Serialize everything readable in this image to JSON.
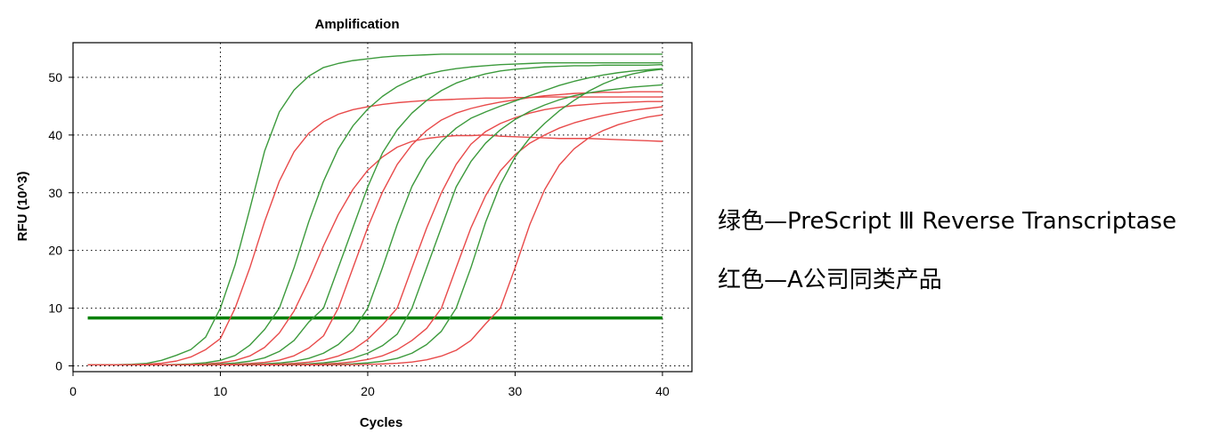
{
  "chart_data": {
    "type": "line",
    "title": "Amplification",
    "xlabel": "Cycles",
    "ylabel": "RFU (10^3)",
    "xlim": [
      0,
      42
    ],
    "ylim": [
      -1,
      56
    ],
    "x_ticks": [
      0,
      10,
      20,
      30,
      40
    ],
    "y_ticks": [
      0,
      10,
      20,
      30,
      40,
      50
    ],
    "grid": true,
    "x": [
      1,
      2,
      3,
      4,
      5,
      6,
      7,
      8,
      9,
      10,
      11,
      12,
      13,
      14,
      15,
      16,
      17,
      18,
      19,
      20,
      21,
      22,
      23,
      24,
      25,
      26,
      27,
      28,
      29,
      30,
      31,
      32,
      33,
      34,
      35,
      36,
      37,
      38,
      39,
      40
    ],
    "threshold": {
      "value": 8.3,
      "color": "#008000"
    },
    "series": [
      {
        "color": "#3c9a3c",
        "values": [
          0.18,
          0.19,
          0.21,
          0.27,
          0.44,
          0.96,
          1.82,
          2.83,
          4.98,
          10.0,
          17.5,
          27.2,
          37.2,
          44.0,
          47.8,
          50.2,
          51.7,
          52.4,
          52.9,
          53.2,
          53.5,
          53.7,
          53.8,
          53.9,
          54.0,
          54.0,
          54.0,
          54.0,
          54.0,
          54.0,
          54.0,
          54.0,
          54.0,
          54.0,
          54.0,
          54.0,
          54.0,
          54.0,
          54.0,
          54.0
        ]
      },
      {
        "color": "#e84a4a",
        "values": [
          0.18,
          0.18,
          0.2,
          0.23,
          0.3,
          0.46,
          0.83,
          1.55,
          2.82,
          4.73,
          10.0,
          17.0,
          25.0,
          32.0,
          37.1,
          40.3,
          42.3,
          43.6,
          44.4,
          44.9,
          45.3,
          45.6,
          45.8,
          46.0,
          46.1,
          46.2,
          46.3,
          46.4,
          46.4,
          46.5,
          46.5,
          46.6,
          46.6,
          46.6,
          46.6,
          46.6,
          46.6,
          46.6,
          46.6,
          46.6
        ]
      },
      {
        "color": "#3c9a3c",
        "values": [
          0.18,
          0.18,
          0.18,
          0.18,
          0.19,
          0.2,
          0.24,
          0.33,
          0.54,
          0.96,
          1.8,
          3.6,
          6.3,
          10.0,
          17.0,
          25.0,
          32.0,
          37.6,
          41.6,
          44.5,
          46.7,
          48.4,
          49.6,
          50.5,
          51.1,
          51.5,
          51.8,
          52.0,
          52.2,
          52.3,
          52.4,
          52.5,
          52.5,
          52.5,
          52.5,
          52.5,
          52.5,
          52.5,
          52.5,
          52.5
        ]
      },
      {
        "color": "#e84a4a",
        "values": [
          0.18,
          0.18,
          0.18,
          0.18,
          0.18,
          0.19,
          0.21,
          0.25,
          0.34,
          0.53,
          0.93,
          1.72,
          3.2,
          5.7,
          9.5,
          14.8,
          20.8,
          26.2,
          30.6,
          33.9,
          36.2,
          37.9,
          38.9,
          39.4,
          39.7,
          39.9,
          39.9,
          40.0,
          39.8,
          39.7,
          39.6,
          39.5,
          39.4,
          39.4,
          39.4,
          39.3,
          39.2,
          39.1,
          39.0,
          38.9
        ]
      },
      {
        "color": "#3c9a3c",
        "values": [
          0.18,
          0.18,
          0.18,
          0.18,
          0.18,
          0.18,
          0.19,
          0.21,
          0.25,
          0.33,
          0.49,
          0.81,
          1.4,
          2.5,
          4.4,
          7.6,
          10.0,
          17.0,
          24.0,
          31.0,
          36.9,
          40.9,
          43.8,
          46.0,
          47.7,
          49.0,
          49.9,
          50.6,
          51.1,
          51.4,
          51.6,
          51.8,
          51.9,
          52.0,
          52.0,
          52.1,
          52.1,
          52.1,
          52.1,
          52.2
        ]
      },
      {
        "color": "#e84a4a",
        "values": [
          0.18,
          0.18,
          0.18,
          0.18,
          0.18,
          0.18,
          0.18,
          0.19,
          0.21,
          0.24,
          0.3,
          0.41,
          0.61,
          1.0,
          1.75,
          3.1,
          5.2,
          10.0,
          17.0,
          24.0,
          30.1,
          34.9,
          38.3,
          40.8,
          42.6,
          43.8,
          44.6,
          45.2,
          45.7,
          46.1,
          46.5,
          46.8,
          47.0,
          47.2,
          47.3,
          47.4,
          47.4,
          47.5,
          47.5,
          47.5
        ]
      },
      {
        "color": "#3c9a3c",
        "values": [
          0.18,
          0.18,
          0.18,
          0.18,
          0.18,
          0.18,
          0.18,
          0.18,
          0.19,
          0.2,
          0.22,
          0.27,
          0.35,
          0.5,
          0.78,
          1.3,
          2.2,
          3.7,
          6.1,
          10.0,
          17.0,
          24.5,
          31.1,
          35.7,
          38.9,
          41.2,
          42.9,
          44.0,
          45.0,
          45.9,
          46.8,
          47.7,
          48.6,
          49.3,
          49.9,
          50.4,
          50.8,
          51.1,
          51.3,
          51.5
        ]
      },
      {
        "color": "#e84a4a",
        "values": [
          0.18,
          0.18,
          0.18,
          0.18,
          0.18,
          0.18,
          0.18,
          0.18,
          0.18,
          0.19,
          0.2,
          0.22,
          0.26,
          0.32,
          0.44,
          0.65,
          1.02,
          1.7,
          2.8,
          4.6,
          7.1,
          10.0,
          17.0,
          23.9,
          30.0,
          34.9,
          38.4,
          40.6,
          42.0,
          43.0,
          43.8,
          44.4,
          44.8,
          45.1,
          45.3,
          45.5,
          45.6,
          45.7,
          45.8,
          45.8
        ]
      },
      {
        "color": "#3c9a3c",
        "values": [
          0.18,
          0.18,
          0.18,
          0.18,
          0.18,
          0.18,
          0.18,
          0.18,
          0.18,
          0.18,
          0.18,
          0.19,
          0.2,
          0.22,
          0.27,
          0.36,
          0.52,
          0.83,
          1.35,
          2.2,
          3.5,
          5.5,
          10.0,
          17.0,
          24.0,
          31.0,
          35.4,
          38.6,
          40.9,
          42.7,
          44.1,
          45.2,
          46.1,
          46.8,
          47.3,
          47.7,
          48.0,
          48.3,
          48.5,
          48.7
        ]
      },
      {
        "color": "#e84a4a",
        "values": [
          0.18,
          0.18,
          0.18,
          0.18,
          0.18,
          0.18,
          0.18,
          0.18,
          0.18,
          0.18,
          0.18,
          0.18,
          0.19,
          0.2,
          0.22,
          0.26,
          0.33,
          0.46,
          0.7,
          1.1,
          1.75,
          2.8,
          4.4,
          6.5,
          10.0,
          17.0,
          23.9,
          29.5,
          33.8,
          36.6,
          38.6,
          40.0,
          41.2,
          42.1,
          42.8,
          43.4,
          43.9,
          44.3,
          44.6,
          44.9
        ]
      },
      {
        "color": "#3c9a3c",
        "values": [
          0.18,
          0.18,
          0.18,
          0.18,
          0.18,
          0.18,
          0.18,
          0.18,
          0.18,
          0.18,
          0.18,
          0.18,
          0.18,
          0.18,
          0.19,
          0.2,
          0.22,
          0.27,
          0.36,
          0.52,
          0.8,
          1.3,
          2.2,
          3.7,
          6.0,
          10.0,
          17.0,
          24.9,
          31.4,
          36.2,
          39.5,
          42.0,
          44.2,
          46.0,
          47.6,
          48.9,
          49.9,
          50.6,
          51.1,
          51.4
        ]
      },
      {
        "color": "#e84a4a",
        "values": [
          0.18,
          0.18,
          0.18,
          0.18,
          0.18,
          0.18,
          0.18,
          0.18,
          0.18,
          0.18,
          0.18,
          0.18,
          0.18,
          0.18,
          0.18,
          0.18,
          0.19,
          0.2,
          0.22,
          0.26,
          0.33,
          0.45,
          0.66,
          1.05,
          1.7,
          2.7,
          4.4,
          7.3,
          10.0,
          17.0,
          24.5,
          30.5,
          34.8,
          37.6,
          39.5,
          40.8,
          41.8,
          42.5,
          43.1,
          43.5
        ]
      }
    ]
  },
  "legend": {
    "green": "绿色—PreScript Ⅲ Reverse Transcriptase",
    "red": "红色—A公司同类产品"
  }
}
